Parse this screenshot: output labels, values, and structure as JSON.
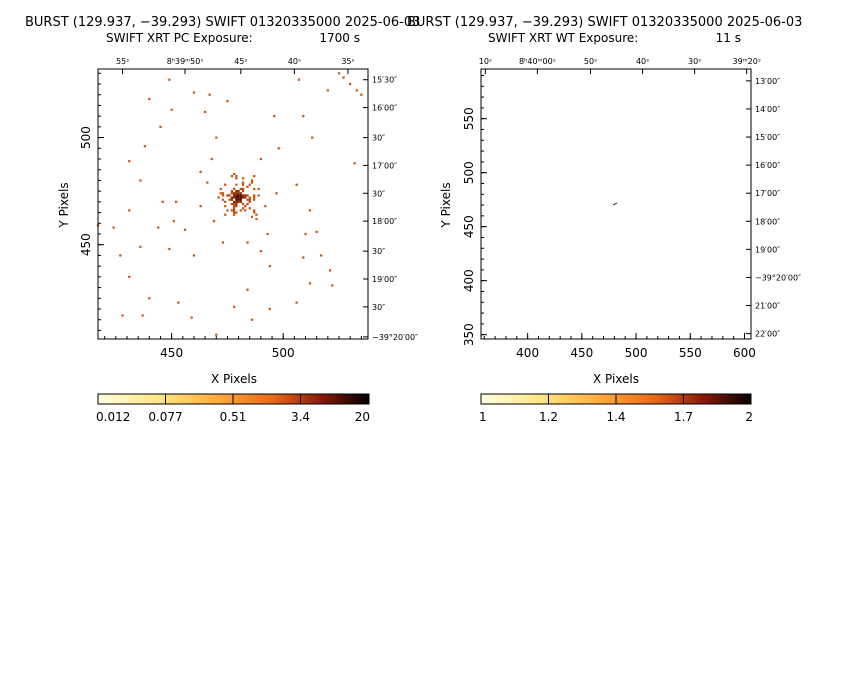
{
  "chart_data": [
    {
      "type": "heatmap",
      "title": "BURST (129.937, −39.293) SWIFT 01320335000 2025-06-03",
      "subtitle_left": "SWIFT XRT PC Exposure:",
      "subtitle_right": "1700 s",
      "xlabel": "X Pixels",
      "ylabel": "Y Pixels",
      "xlim": [
        417,
        538
      ],
      "ylim": [
        406,
        532
      ],
      "x_ticks": [
        450,
        500
      ],
      "y_ticks": [
        450,
        500
      ],
      "x_tick_labels": [
        "450",
        "500"
      ],
      "y_tick_labels": [
        "450",
        "500"
      ],
      "ra_labels": [
        {
          "text": "55ˢ",
          "x": 428
        },
        {
          "text": "8ʰ39ᵐ50ˢ",
          "x": 456
        },
        {
          "text": "45ˢ",
          "x": 481
        },
        {
          "text": "40ˢ",
          "x": 505
        },
        {
          "text": "35ˢ",
          "x": 529
        }
      ],
      "dec_labels": [
        {
          "text": "15′30″",
          "y": 527
        },
        {
          "text": "16′00″",
          "y": 514
        },
        {
          "text": "30″",
          "y": 500
        },
        {
          "text": "17′00″",
          "y": 487
        },
        {
          "text": "30″",
          "y": 474
        },
        {
          "text": "18′00″",
          "y": 461
        },
        {
          "text": "30″",
          "y": 447
        },
        {
          "text": "19′00″",
          "y": 434
        },
        {
          "text": "30″",
          "y": 421
        },
        {
          "text": "−39°20′00″",
          "y": 407
        }
      ],
      "colorbar_labels": [
        "0.012",
        "0.077",
        "0.51",
        "3.4",
        "20"
      ],
      "source_center": [
        480,
        472
      ],
      "background_counts": [
        [
          530,
          525
        ],
        [
          533,
          522
        ],
        [
          527,
          528
        ],
        [
          525,
          530
        ],
        [
          535,
          520
        ],
        [
          460,
          521
        ],
        [
          467,
          520
        ],
        [
          449,
          527
        ],
        [
          440,
          518
        ],
        [
          450,
          513
        ],
        [
          445,
          505
        ],
        [
          438,
          496
        ],
        [
          431,
          489
        ],
        [
          436,
          480
        ],
        [
          431,
          466
        ],
        [
          427,
          445
        ],
        [
          431,
          435
        ],
        [
          440,
          425
        ],
        [
          428,
          417
        ],
        [
          437,
          417
        ],
        [
          453,
          423
        ],
        [
          459,
          416
        ],
        [
          470,
          408
        ],
        [
          478,
          421
        ],
        [
          486,
          415
        ],
        [
          484,
          429
        ],
        [
          494,
          420
        ],
        [
          506,
          423
        ],
        [
          512,
          432
        ],
        [
          521,
          438
        ],
        [
          522,
          431
        ],
        [
          517,
          445
        ],
        [
          510,
          455
        ],
        [
          512,
          466
        ],
        [
          506,
          478
        ],
        [
          498,
          495
        ],
        [
          496,
          510
        ],
        [
          509,
          510
        ],
        [
          513,
          500
        ],
        [
          520,
          522
        ],
        [
          507,
          527
        ],
        [
          475,
          517
        ],
        [
          466,
          479
        ],
        [
          463,
          468
        ],
        [
          456,
          457
        ],
        [
          451,
          461
        ],
        [
          449,
          448
        ],
        [
          460,
          445
        ],
        [
          473,
          451
        ],
        [
          488,
          462
        ],
        [
          492,
          468
        ],
        [
          493,
          455
        ],
        [
          490,
          447
        ],
        [
          484,
          451
        ],
        [
          471,
          472
        ],
        [
          497,
          474
        ],
        [
          490,
          490
        ],
        [
          468,
          490
        ],
        [
          463,
          484
        ],
        [
          515,
          456
        ],
        [
          509,
          444
        ],
        [
          470,
          500
        ],
        [
          465,
          512
        ],
        [
          446,
          470
        ],
        [
          452,
          470
        ],
        [
          444,
          458
        ],
        [
          424,
          458
        ],
        [
          436,
          449
        ],
        [
          417,
          459
        ],
        [
          532,
          488
        ],
        [
          494,
          440
        ],
        [
          486,
          479
        ],
        [
          478,
          483
        ]
      ]
    },
    {
      "type": "heatmap",
      "title": "BURST (129.937, −39.293) SWIFT 01320335000 2025-06-03",
      "subtitle_left": "SWIFT XRT WT Exposure:",
      "subtitle_right": "11 s",
      "xlabel": "X Pixels",
      "ylabel": "Y Pixels",
      "xlim": [
        357,
        606
      ],
      "ylim": [
        346,
        596
      ],
      "x_ticks": [
        400,
        450,
        500,
        550,
        600
      ],
      "y_ticks": [
        350,
        400,
        450,
        500,
        550
      ],
      "x_tick_labels": [
        "400",
        "450",
        "500",
        "550",
        "600"
      ],
      "y_tick_labels": [
        "350",
        "400",
        "450",
        "500",
        "550"
      ],
      "ra_labels": [
        {
          "text": "10ˢ",
          "x": 361
        },
        {
          "text": "8ʰ40ᵐ00ˢ",
          "x": 409
        },
        {
          "text": "50ˢ",
          "x": 458
        },
        {
          "text": "40ˢ",
          "x": 506
        },
        {
          "text": "30ˢ",
          "x": 554
        },
        {
          "text": "39ᵐ20ˢ",
          "x": 602
        }
      ],
      "dec_labels": [
        {
          "text": "13′00″",
          "y": 585
        },
        {
          "text": "14′00″",
          "y": 559
        },
        {
          "text": "15′00″",
          "y": 533
        },
        {
          "text": "16′00″",
          "y": 507
        },
        {
          "text": "17′00″",
          "y": 481
        },
        {
          "text": "18′00″",
          "y": 455
        },
        {
          "text": "19′00″",
          "y": 429
        },
        {
          "text": "−39°20′00″",
          "y": 403
        },
        {
          "text": "21′00″",
          "y": 377
        },
        {
          "text": "22′00″",
          "y": 351
        }
      ],
      "colorbar_labels": [
        "1",
        "1.2",
        "1.4",
        "1.7",
        "2"
      ],
      "source_center": [
        480,
        470
      ]
    }
  ],
  "colors": {
    "low": "#ffffc8",
    "mid": "#ff9a1e",
    "high": "#d2520a",
    "peak": "#501000"
  }
}
